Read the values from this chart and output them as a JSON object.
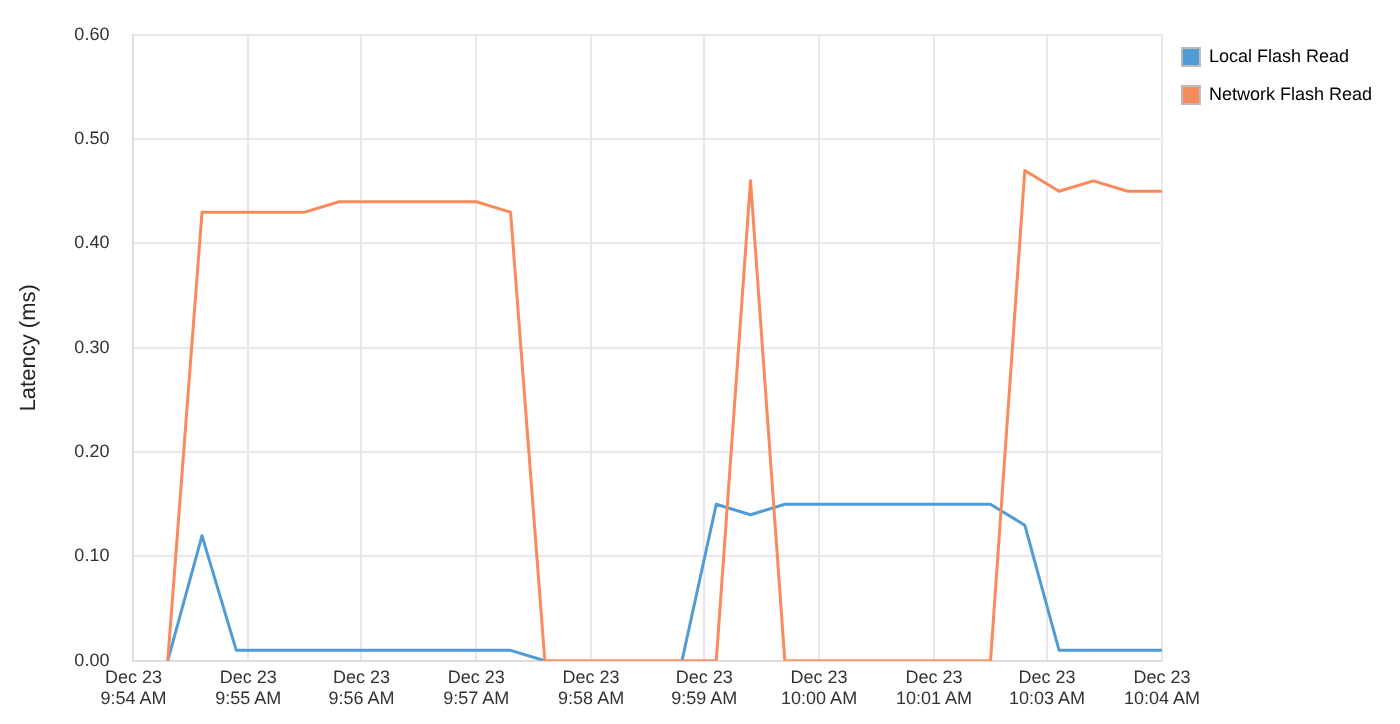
{
  "chart_data": {
    "type": "line",
    "ylabel": "Latency (ms)",
    "x": [
      "--12-23T09:54:20",
      "--12-23T09:54:40",
      "--12-23T09:55:00",
      "--12-23T09:55:20",
      "--12-23T09:55:40",
      "--12-23T09:56:00",
      "--12-23T09:56:20",
      "--12-23T09:56:40",
      "--12-23T09:57:00",
      "--12-23T09:57:20",
      "--12-23T09:57:40",
      "--12-23T09:58:00",
      "--12-23T09:58:20",
      "--12-23T09:58:40",
      "--12-23T09:59:00",
      "--12-23T09:59:20",
      "--12-23T09:59:40",
      "--12-23T10:00:00",
      "--12-23T10:00:20",
      "--12-23T10:00:40",
      "--12-23T10:01:00",
      "--12-23T10:01:20",
      "--12-23T10:01:40",
      "--12-23T10:02:00",
      "--12-23T10:02:20",
      "--12-23T10:02:40",
      "--12-23T10:03:00",
      "--12-23T10:03:20",
      "--12-23T10:03:40",
      "--12-23T10:04:00"
    ],
    "series": [
      {
        "name": "Local Flash Read",
        "color": "#4f9bd6",
        "values": [
          0,
          0.12,
          0.01,
          0.01,
          0.01,
          0.01,
          0.01,
          0.01,
          0.01,
          0.01,
          0.01,
          0,
          null,
          null,
          null,
          0,
          0.15,
          0.14,
          0.15,
          0.15,
          0.15,
          0.15,
          0.15,
          0.15,
          0.15,
          0.13,
          0.01,
          0.01,
          0.01,
          0.01
        ]
      },
      {
        "name": "Network Flash Read",
        "color": "#f98a5c",
        "values": [
          0,
          0.43,
          0.43,
          0.43,
          0.43,
          0.44,
          0.44,
          0.44,
          0.44,
          0.44,
          0.43,
          0,
          0,
          0,
          0,
          0,
          0,
          0.46,
          0,
          0,
          0,
          0,
          0,
          0,
          0,
          0.47,
          0.45,
          0.46,
          0.45,
          0.45
        ]
      }
    ],
    "xlim": [
      "--12-23T09:54:00",
      "--12-23T10:04:00"
    ],
    "xticks": [
      {
        "value": "--12-23T09:54:00",
        "label": "Dec 23\n9:54 AM"
      },
      {
        "value": "--12-23T09:55:07",
        "label": "Dec 23\n9:55 AM"
      },
      {
        "value": "--12-23T09:56:13",
        "label": "Dec 23\n9:56 AM"
      },
      {
        "value": "--12-23T09:57:20",
        "label": "Dec 23\n9:57 AM"
      },
      {
        "value": "--12-23T09:58:27",
        "label": "Dec 23\n9:58 AM"
      },
      {
        "value": "--12-23T09:59:33",
        "label": "Dec 23\n9:59 AM"
      },
      {
        "value": "--12-23T10:00:40",
        "label": "Dec 23\n10:00 AM"
      },
      {
        "value": "--12-23T10:01:47",
        "label": "Dec 23\n10:01 AM"
      },
      {
        "value": "--12-23T10:02:53",
        "label": "Dec 23\n10:03 AM"
      },
      {
        "value": "--12-23T10:04:00",
        "label": "Dec 23\n10:04 AM"
      }
    ],
    "ylim": [
      0,
      0.6
    ],
    "yticks": [
      {
        "value": 0,
        "label": "0.00"
      },
      {
        "value": 0.1,
        "label": "0.10"
      },
      {
        "value": 0.2,
        "label": "0.20"
      },
      {
        "value": 0.3,
        "label": "0.30"
      },
      {
        "value": 0.4,
        "label": "0.40"
      },
      {
        "value": 0.5,
        "label": "0.50"
      },
      {
        "value": 0.6,
        "label": "0.60"
      }
    ],
    "grid": true,
    "legend": "top right",
    "marker": "none",
    "line_style": "solid"
  }
}
